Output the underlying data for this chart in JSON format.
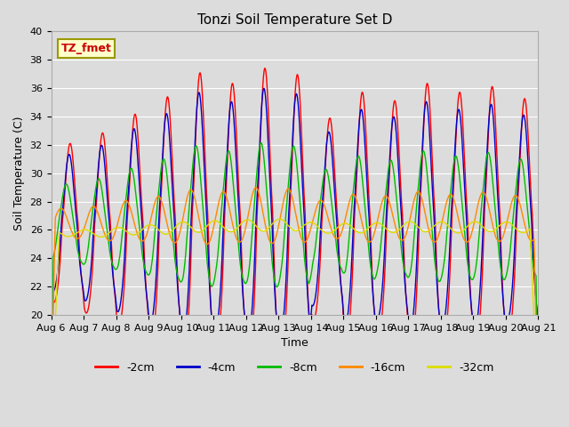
{
  "title": "Tonzi Soil Temperature Set D",
  "xlabel": "Time",
  "ylabel": "Soil Temperature (C)",
  "ylim": [
    20,
    40
  ],
  "xlim": [
    0,
    15
  ],
  "x_tick_labels": [
    "Aug 6",
    "Aug 7",
    "Aug 8",
    "Aug 9",
    "Aug 10",
    "Aug 11",
    "Aug 12",
    "Aug 13",
    "Aug 14",
    "Aug 15",
    "Aug 16",
    "Aug 17",
    "Aug 18",
    "Aug 19",
    "Aug 20",
    "Aug 21"
  ],
  "series": [
    {
      "label": "-2cm",
      "color": "#FF0000",
      "base": 26.5,
      "amplitude": 7.5,
      "phase_lag": 0.0,
      "smoothing": 1.0
    },
    {
      "label": "-4cm",
      "color": "#0000CC",
      "base": 26.5,
      "amplitude": 6.5,
      "phase_lag": 0.03,
      "smoothing": 1.5
    },
    {
      "label": "-8cm",
      "color": "#00BB00",
      "base": 26.5,
      "amplitude": 3.8,
      "phase_lag": 0.12,
      "smoothing": 3.0
    },
    {
      "label": "-16cm",
      "color": "#FF8800",
      "base": 26.5,
      "amplitude": 1.6,
      "phase_lag": 0.28,
      "smoothing": 6.0
    },
    {
      "label": "-32cm",
      "color": "#DDDD00",
      "base": 25.8,
      "amplitude": 0.5,
      "phase_lag": 0.55,
      "smoothing": 12.0
    }
  ],
  "annotation_text": "TZ_fmet",
  "bg_color": "#DCDCDC",
  "grid_color": "#FFFFFF",
  "title_fontsize": 11,
  "label_fontsize": 9,
  "tick_fontsize": 8
}
